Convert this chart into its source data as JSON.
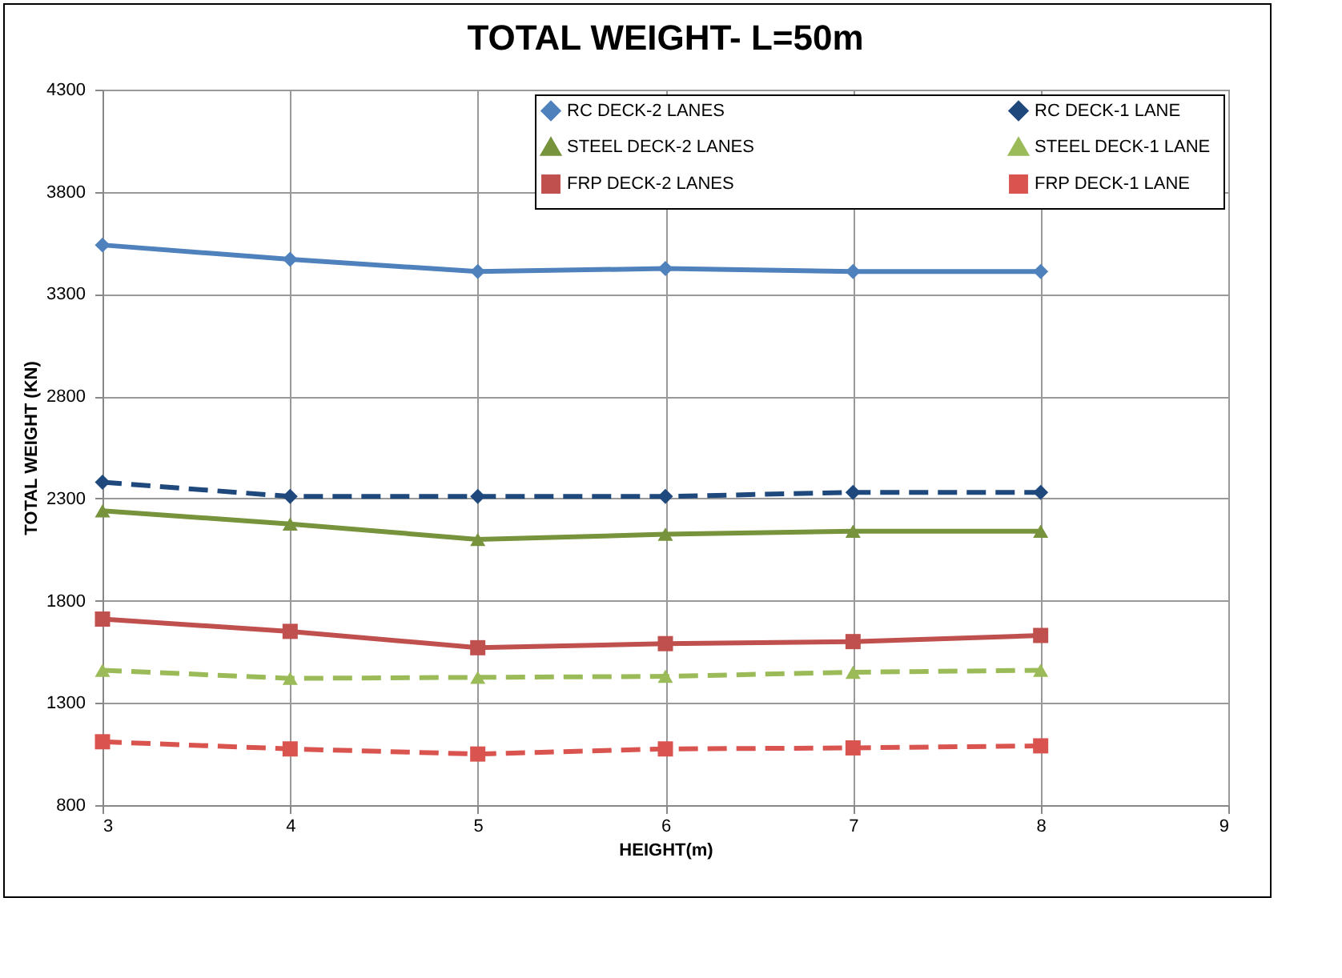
{
  "chart_data": {
    "type": "line",
    "title": "TOTAL WEIGHT- L=50m",
    "xlabel": "HEIGHT(m)",
    "ylabel": "TOTAL WEIGHT  (KN)",
    "x": [
      3,
      4,
      5,
      6,
      7,
      8
    ],
    "series": [
      {
        "name": "RC DECK-2  LANES",
        "color": "#4f81bd",
        "marker": "diamond",
        "line_style": "solid",
        "values": [
          3540,
          3470,
          3410,
          3425,
          3410,
          3410
        ]
      },
      {
        "name": "RC DECK-1  LANE",
        "color": "#1f497d",
        "marker": "diamond",
        "line_style": "dashed",
        "values": [
          2380,
          2310,
          2310,
          2310,
          2330,
          2330
        ]
      },
      {
        "name": "STEEL DECK-2  LANES",
        "color": "#77933c",
        "marker": "triangle",
        "line_style": "solid",
        "values": [
          2240,
          2175,
          2100,
          2125,
          2140,
          2140
        ]
      },
      {
        "name": "STEEL DECK-1  LANE",
        "color": "#9bbb59",
        "marker": "triangle",
        "line_style": "dashed",
        "values": [
          1460,
          1420,
          1425,
          1430,
          1450,
          1460
        ]
      },
      {
        "name": "FRP DECK-2  LANES",
        "color": "#c0504d",
        "marker": "square",
        "line_style": "solid",
        "values": [
          1710,
          1650,
          1570,
          1590,
          1600,
          1630
        ]
      },
      {
        "name": "FRP DECK-1  LANE",
        "color": "#d9534f",
        "marker": "square",
        "line_style": "dashed",
        "values": [
          1110,
          1075,
          1050,
          1075,
          1080,
          1090
        ]
      }
    ],
    "xlim": [
      3,
      9
    ],
    "xticks": [
      3,
      4,
      5,
      6,
      7,
      8,
      9
    ],
    "ylim": [
      800,
      4300
    ],
    "yticks": [
      800,
      1300,
      1800,
      2300,
      2800,
      3300,
      3800,
      4300
    ],
    "grid": true,
    "legend": "top right"
  }
}
